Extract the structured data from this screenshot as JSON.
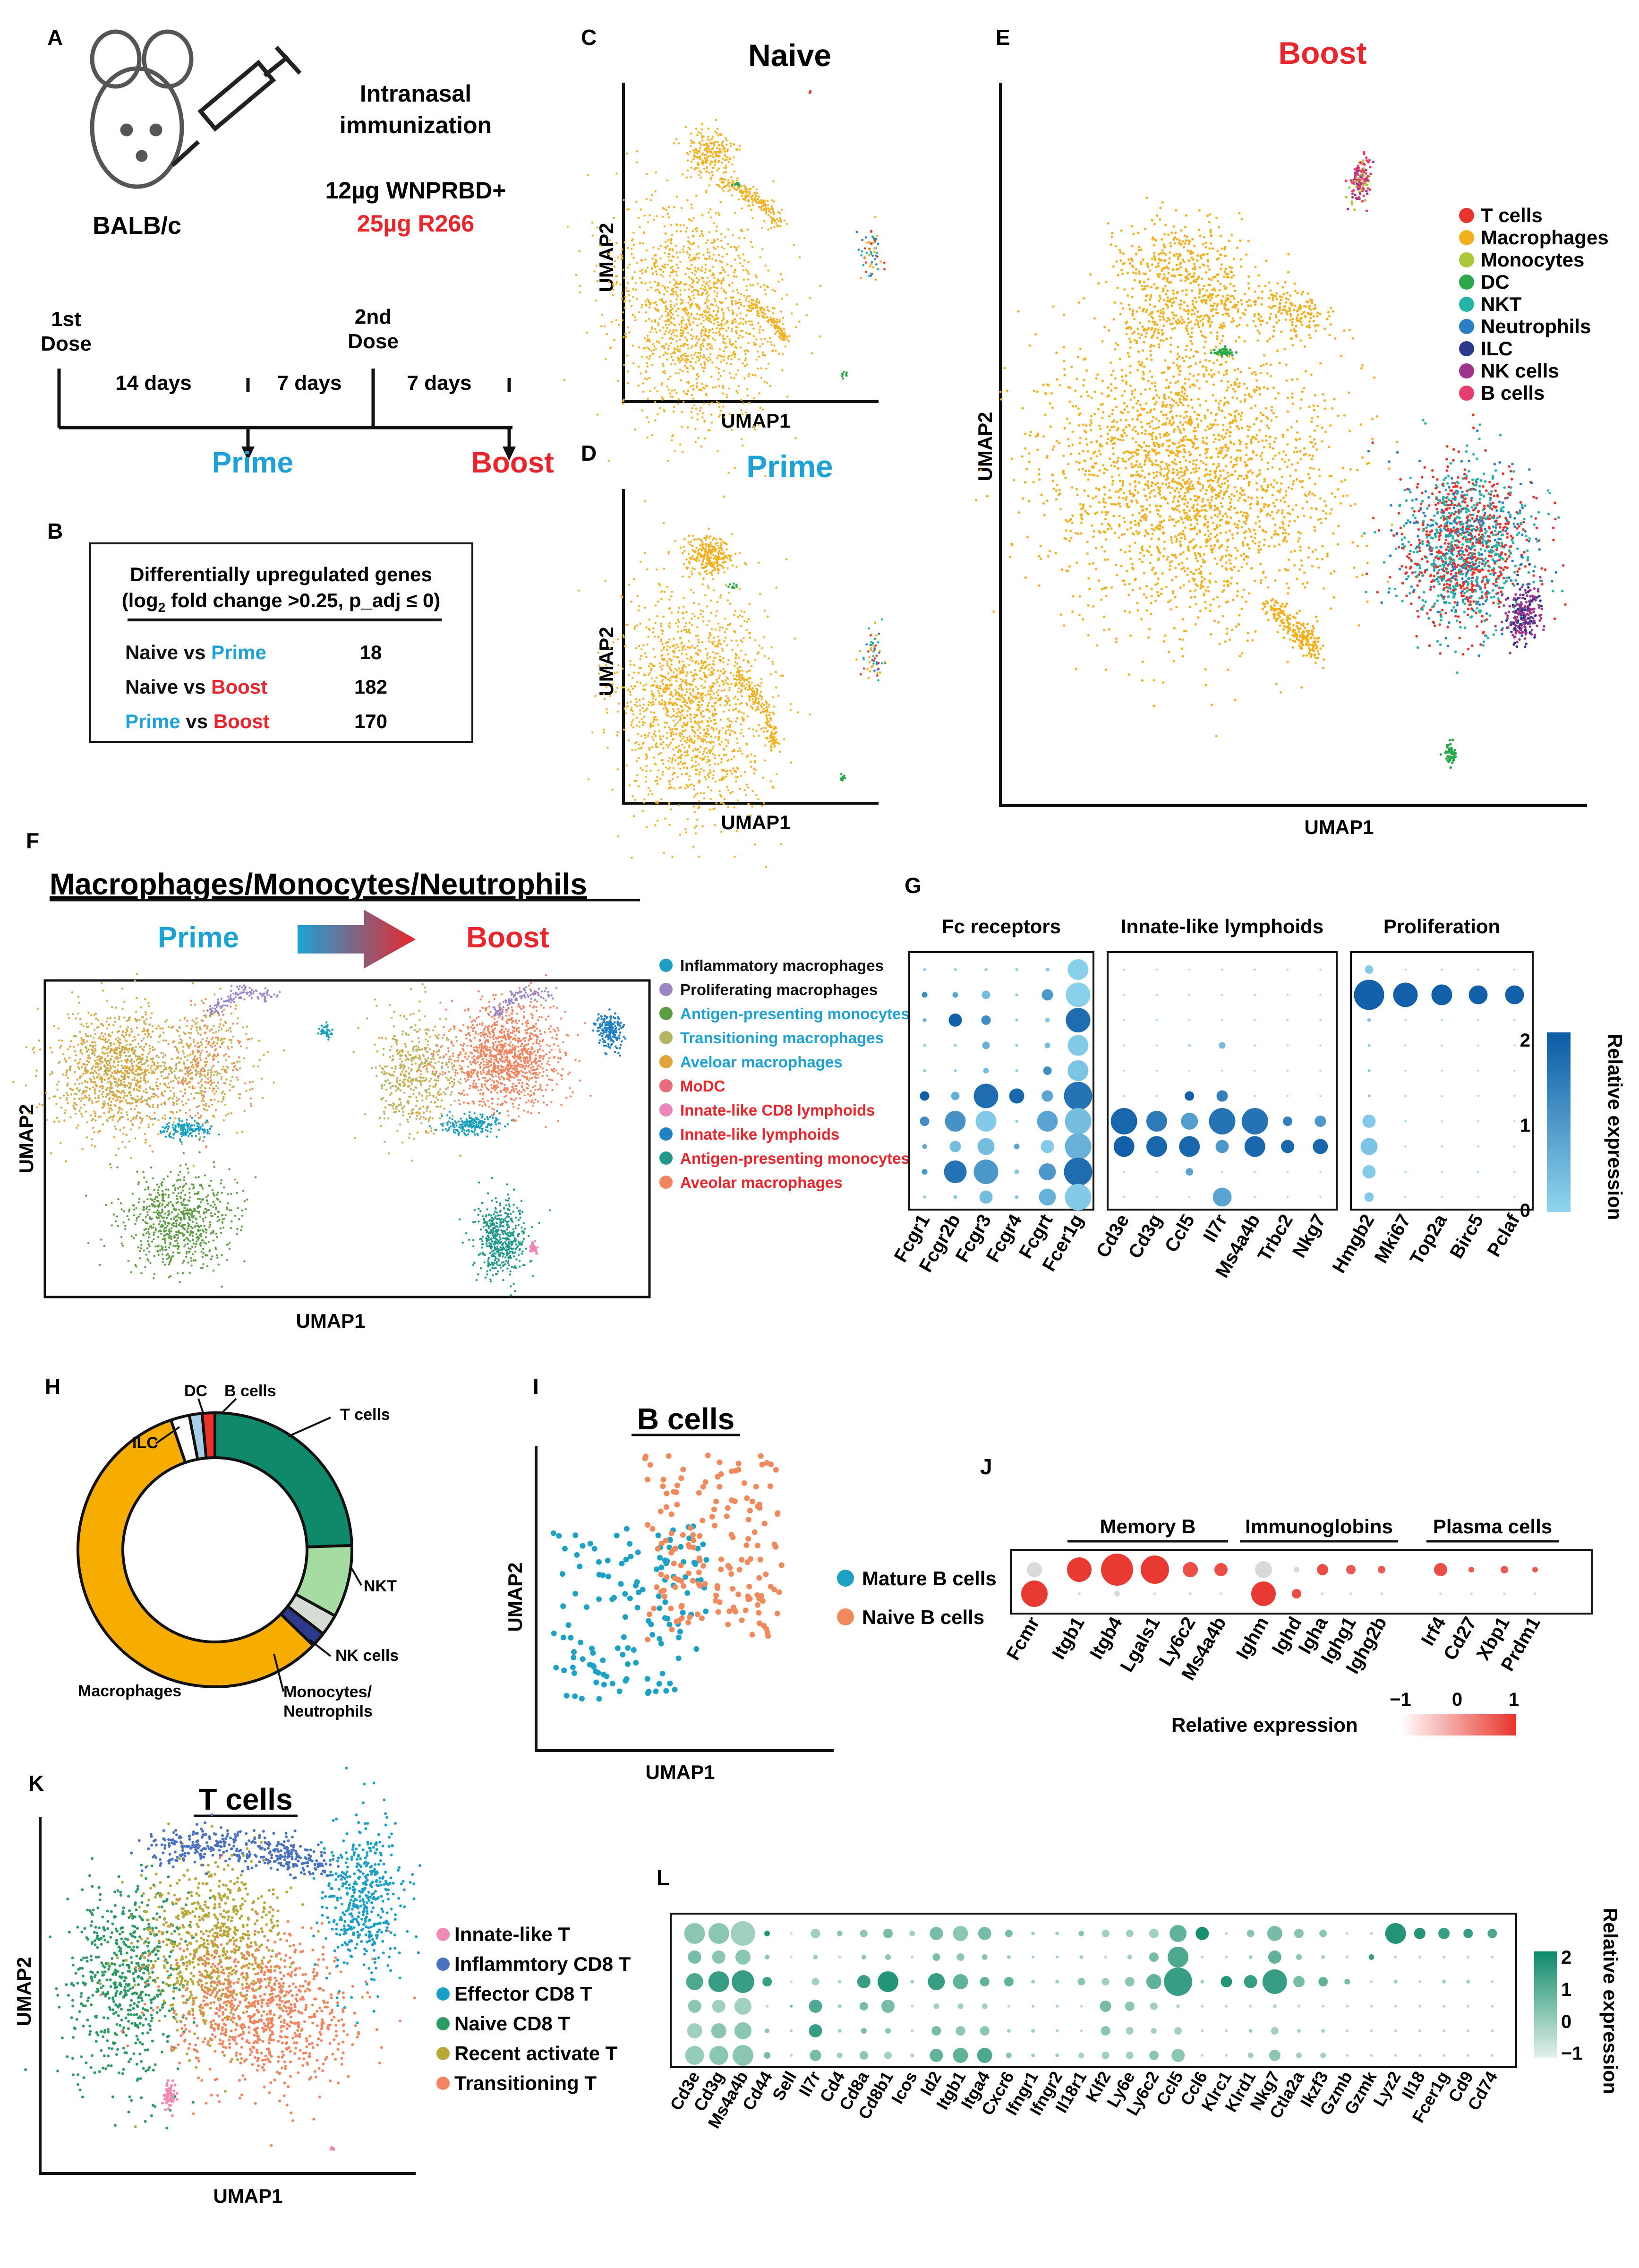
{
  "palette": {
    "t_cells": "#e8342b",
    "macrophages": "#f2b01e",
    "monocytes": "#a9c83a",
    "dc": "#2aa84a",
    "nkt": "#26b3a8",
    "neutrophils": "#2a7fc4",
    "ilc": "#2d3a8c",
    "nk_cells": "#a0358e",
    "b_cells": "#e83e6f",
    "prime": "#1da1d6",
    "boost": "#e8262b",
    "green_hi": "#0e8a6a",
    "green_lo": "#d3ebdf",
    "blue_hi": "#0b5aa5",
    "blue_lo": "#8fd6ee",
    "red_hi": "#e8342b",
    "grey": "#d9d9d9"
  },
  "panel_a": {
    "letter": "A",
    "strain": "BALB/c",
    "route_1": "Intranasal",
    "route_2": "immunization",
    "dose_1": "12µg WNPRBD+",
    "dose_2": "25µg R266",
    "first_dose_1": "1st",
    "first_dose_2": "Dose",
    "second_dose_1": "2nd",
    "second_dose_2": "Dose",
    "interval_1": "14 days",
    "interval_2": "7 days",
    "interval_3": "7 days",
    "prime": "Prime",
    "boost": "Boost"
  },
  "panel_b": {
    "letter": "B",
    "title": "Differentially upregulated genes",
    "sub_pre": "(log",
    "sub_sub": "2",
    "sub_post": " fold change >0.25, p_adj ≤ 0)",
    "rows": [
      {
        "left": "Naive",
        "vs": " vs ",
        "right": "Prime",
        "count": "18",
        "left_color": "#111111",
        "right_color": "#1da1d6"
      },
      {
        "left": "Naive",
        "vs": " vs ",
        "right": "Boost",
        "count": "182",
        "left_color": "#111111",
        "right_color": "#e8262b"
      },
      {
        "left": "Prime",
        "vs": " vs ",
        "right": "Boost",
        "count": "170",
        "left_color": "#1da1d6",
        "right_color": "#e8262b"
      }
    ]
  },
  "panel_c": {
    "letter": "C",
    "title": "Naive",
    "xlabel": "UMAP1",
    "ylabel": "UMAP2"
  },
  "panel_d": {
    "letter": "D",
    "title": "Prime",
    "xlabel": "UMAP1",
    "ylabel": "UMAP2"
  },
  "panel_e": {
    "letter": "E",
    "title": "Boost",
    "xlabel": "UMAP1",
    "ylabel": "UMAP2",
    "legend": [
      {
        "label": "T cells",
        "color": "#e8342b"
      },
      {
        "label": "Macrophages",
        "color": "#f2b01e"
      },
      {
        "label": "Monocytes",
        "color": "#a9c83a"
      },
      {
        "label": "DC",
        "color": "#2aa84a"
      },
      {
        "label": "NKT",
        "color": "#26b3a8"
      },
      {
        "label": "Neutrophils",
        "color": "#2a7fc4"
      },
      {
        "label": "ILC",
        "color": "#2d3a8c"
      },
      {
        "label": "NK cells",
        "color": "#a0358e"
      },
      {
        "label": "B cells",
        "color": "#e83e6f"
      }
    ]
  },
  "panel_f": {
    "letter": "F",
    "title": "Macrophages/Monocytes/Neutrophils",
    "prime": "Prime",
    "boost": "Boost",
    "xlabel": "UMAP1",
    "ylabel": "UMAP2",
    "legend": [
      {
        "label": "Inflammatory macrophages",
        "color": "#1a9fc0",
        "text_color": "#111111"
      },
      {
        "label": "Proliferating macrophages",
        "color": "#9a86c4",
        "text_color": "#111111"
      },
      {
        "label": "Antigen-presenting monocytes",
        "color": "#5e9c45",
        "text_color": "#1da1d6"
      },
      {
        "label": "Transitioning macrophages",
        "color": "#b5b460",
        "text_color": "#1da1d6"
      },
      {
        "label": "Aveloar macrophages",
        "color": "#e0a43a",
        "text_color": "#1da1d6"
      },
      {
        "label": "MoDC",
        "color": "#e86b7e",
        "text_color": "#e8262b"
      },
      {
        "label": "Innate-like CD8 lymphoids",
        "color": "#e985b9",
        "text_color": "#e8262b"
      },
      {
        "label": "Innate-like lymphoids",
        "color": "#2280c4",
        "text_color": "#e8262b"
      },
      {
        "label": "Antigen-presenting monocytes",
        "color": "#23998c",
        "text_color": "#e8262b"
      },
      {
        "label": "Aveolar macrophages",
        "color": "#f2845f",
        "text_color": "#e8262b"
      }
    ]
  },
  "panel_g": {
    "letter": "G",
    "groups": [
      {
        "title": "Fc receptors",
        "genes": [
          "Fcgr1",
          "Fcgr2b",
          "Fcgr3",
          "Fcgr4",
          "Fcgrt",
          "Fcer1g"
        ]
      },
      {
        "title": "Innate-like lymphoids",
        "genes": [
          "Cd3e",
          "Cd3g",
          "Ccl5",
          "Il7r",
          "Ms4a4b",
          "Trbc2",
          "Nkg7"
        ]
      },
      {
        "title": "Proliferation",
        "genes": [
          "Hmgb2",
          "Mki67",
          "Top2a",
          "Birc5",
          "Pclaf"
        ]
      }
    ],
    "colorbar_label": "Relative expression",
    "colorbar_ticks": [
      "2",
      "1",
      "0"
    ]
  },
  "panel_h": {
    "letter": "H",
    "chart_data": {
      "type": "pie",
      "categories": [
        "T cells",
        "NKT",
        "NK cells",
        "Monocytes/ Neutrophils",
        "Macrophages",
        "ILC",
        "DC",
        "B cells"
      ],
      "values": [
        24.5,
        8.5,
        2.5,
        1.8,
        57.5,
        2.2,
        1.5,
        1.5
      ],
      "colors": [
        "#0e8a6a",
        "#a5dca1",
        "#d7dbd5",
        "#2d3a8c",
        "#f7ad00",
        "#ffffff",
        "#a9cfe8",
        "#e8342b"
      ],
      "labels": {
        "t_cells": "T cells",
        "nkt": "NKT",
        "nk_cells": "NK cells",
        "mono_1": "Monocytes/",
        "mono_2": "Neutrophils",
        "macrophages": "Macrophages",
        "ilc": "ILC",
        "dc": "DC",
        "b_cells": "B cells"
      }
    }
  },
  "panel_i": {
    "letter": "I",
    "title": "B cells",
    "xlabel": "UMAP1",
    "ylabel": "UMAP2",
    "legend": [
      {
        "label": "Mature B cells",
        "color": "#1da1c4"
      },
      {
        "label": "Naive B cells",
        "color": "#f08a5d"
      }
    ]
  },
  "panel_j": {
    "letter": "J",
    "groups": [
      {
        "title": "Memory B",
        "genes": [
          "Itgb1",
          "Itgb4",
          "Lgals1",
          "Ly6c2",
          "Ms4a4b"
        ]
      },
      {
        "title": "Immunoglobins",
        "genes": [
          "Ighm",
          "Ighd",
          "Igha",
          "Ighg1",
          "Ighg2b"
        ]
      },
      {
        "title": "Plasma cells",
        "genes": [
          "Irf4",
          "Cd27",
          "Xbp1",
          "Prdm1"
        ]
      }
    ],
    "lead_gene": "Fcmr",
    "colorbar_label": "Relative expression",
    "colorbar_ticks": [
      "−1",
      "0",
      "1"
    ]
  },
  "panel_k": {
    "letter": "K",
    "title": "T cells",
    "xlabel": "UMAP1",
    "ylabel": "UMAP2",
    "legend": [
      {
        "label": "Innate-like T",
        "color": "#f08ab4"
      },
      {
        "label": "Inflammtory CD8 T",
        "color": "#4a72c0"
      },
      {
        "label": "Effector CD8 T",
        "color": "#1aa0c8"
      },
      {
        "label": "Naive CD8 T",
        "color": "#2b9a64"
      },
      {
        "label": "Recent activate T",
        "color": "#b8a83a"
      },
      {
        "label": "Transitioning T",
        "color": "#f2845f"
      }
    ]
  },
  "panel_l": {
    "letter": "L",
    "genes": [
      "Cd3e",
      "Cd3g",
      "Ms4a4b",
      "Cd44",
      "Sell",
      "Il7r",
      "Cd4",
      "Cd8a",
      "Cd8b1",
      "Icos",
      "Id2",
      "Itgb1",
      "Itga4",
      "Cxcr6",
      "Ifngr1",
      "Ifngr2",
      "Il18r1",
      "Klf2",
      "Ly6e",
      "Ly6c2",
      "Ccl5",
      "Ccl6",
      "Klrc1",
      "Klrd1",
      "Nkg7",
      "Ctla2a",
      "Ikzf3",
      "Gzmb",
      "Gzmk",
      "Lyz2",
      "Il18",
      "Fcer1g",
      "Cd9",
      "Cd74"
    ],
    "colorbar_label": "Relative expression",
    "colorbar_ticks": [
      "2",
      "1",
      "0",
      "−1"
    ]
  }
}
